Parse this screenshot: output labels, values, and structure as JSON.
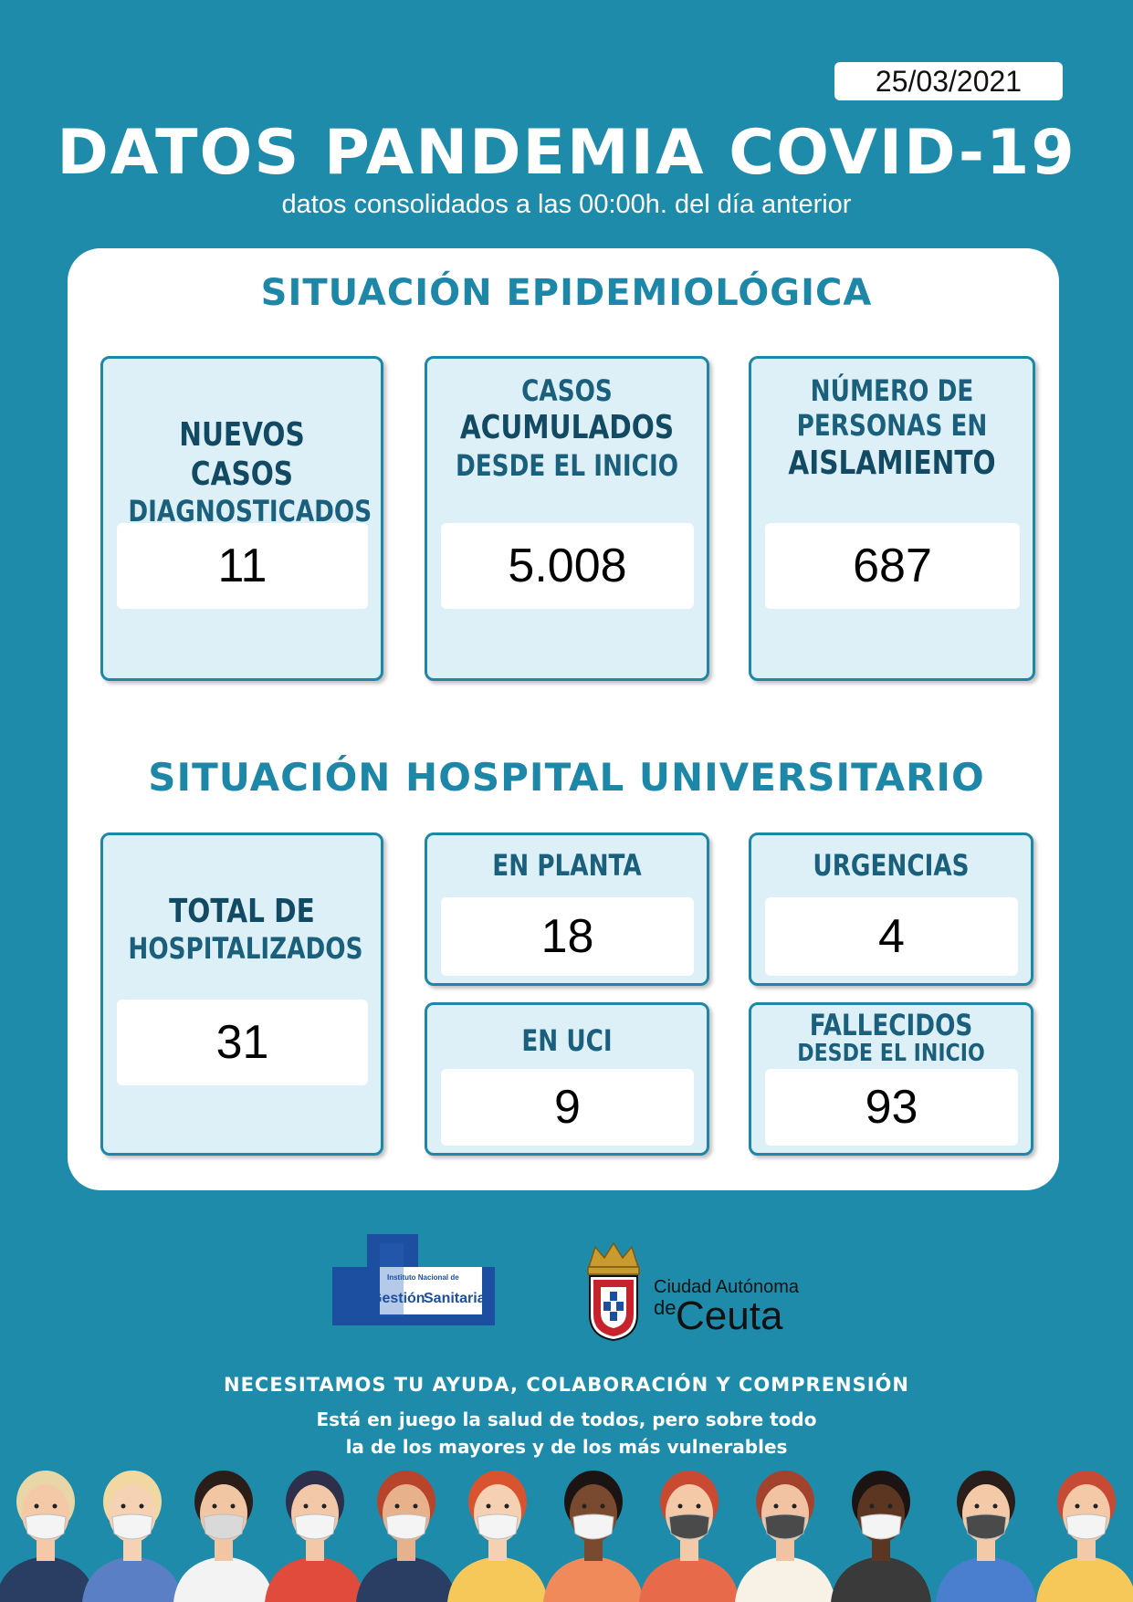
{
  "header": {
    "date": "25/03/2021",
    "title": "DATOS PANDEMIA COVID-19",
    "subtitle": "datos consolidados a las 00:00h. del día anterior"
  },
  "epidemiologica": {
    "title": "SITUACIÓN EPIDEMIOLÓGICA",
    "nuevos": {
      "line1": "NUEVOS CASOS",
      "line2": "DIAGNOSTICADOS",
      "value": "11"
    },
    "acumulados": {
      "line1": "CASOS",
      "line2": "ACUMULADOS",
      "line3": "DESDE EL INICIO",
      "value": "5.008"
    },
    "aislamiento": {
      "line1": "NÚMERO DE",
      "line2": "PERSONAS EN",
      "line3": "AISLAMIENTO",
      "value": "687"
    }
  },
  "hospital": {
    "title": "SITUACIÓN HOSPITAL UNIVERSITARIO",
    "total": {
      "line1": "TOTAL DE",
      "line2": "HOSPITALIZADOS",
      "value": "31"
    },
    "planta": {
      "label": "EN PLANTA",
      "value": "18"
    },
    "urgencias": {
      "label": "URGENCIAS",
      "value": "4"
    },
    "uci": {
      "label": "EN UCI",
      "value": "9"
    },
    "fallecidos": {
      "line1": "FALLECIDOS",
      "line2": "DESDE EL INICIO",
      "value": "93"
    }
  },
  "logos": {
    "ingesa_small": "Instituto Nacional de",
    "ingesa_word1": "Gestión",
    "ingesa_word2": "Sanitaria",
    "ceuta_line1": "Ciudad Autónoma",
    "ceuta_de": "de",
    "ceuta_name": "Ceuta"
  },
  "footer": {
    "slogan": "NECESITAMOS TU AYUDA, COLABORACIÓN  Y COMPRENSIÓN",
    "line1": "Está en juego la salud de todos, pero sobre todo",
    "line2": "la de los mayores y de los más vulnerables"
  },
  "colors": {
    "background": "#1f8bab",
    "accent": "#1d87a8",
    "card_fill": "#def0f7"
  }
}
